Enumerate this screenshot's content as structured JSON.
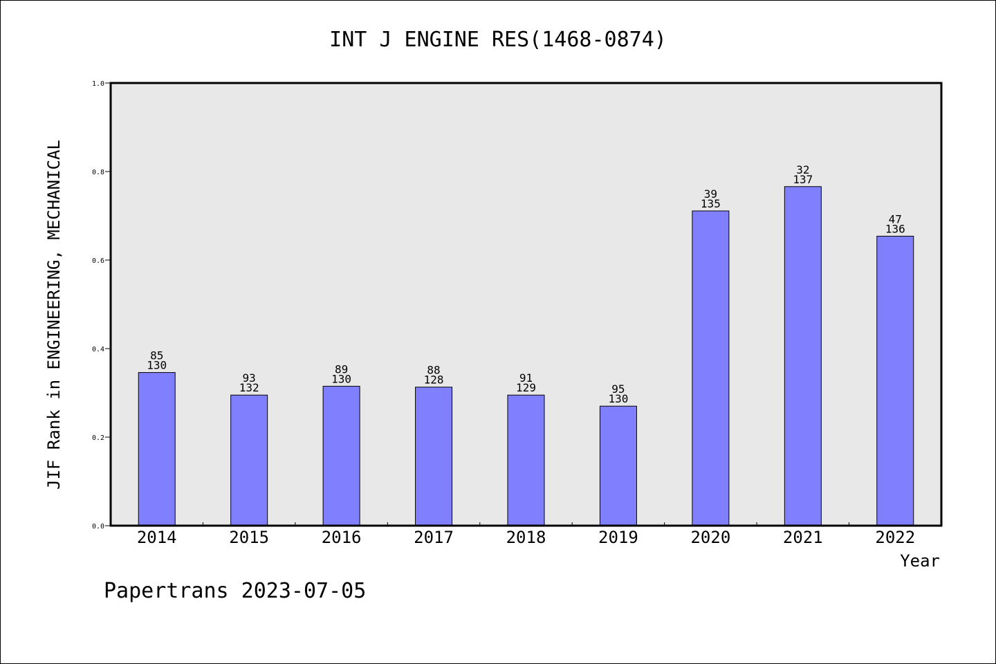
{
  "chart_data": {
    "type": "bar",
    "title": "INT J ENGINE RES(1468-0874)",
    "xlabel": "Year",
    "ylabel": "JIF Rank in ENGINEERING, MECHANICAL",
    "ylim": [
      0.0,
      1.0
    ],
    "yticks": [
      0.0,
      0.2,
      0.4,
      0.6,
      0.8,
      1.0
    ],
    "ytick_labels": [
      "0.0",
      "0.2",
      "0.4",
      "0.6",
      "0.8",
      "1.0"
    ],
    "categories": [
      "2014",
      "2015",
      "2016",
      "2017",
      "2018",
      "2019",
      "2020",
      "2021",
      "2022"
    ],
    "values": [
      0.346,
      0.295,
      0.315,
      0.313,
      0.295,
      0.27,
      0.711,
      0.766,
      0.654
    ],
    "rank_labels": [
      "85",
      "93",
      "89",
      "88",
      "91",
      "95",
      "39",
      "32",
      "47"
    ],
    "total_labels": [
      "130",
      "132",
      "130",
      "128",
      "129",
      "130",
      "135",
      "137",
      "136"
    ],
    "grid": false,
    "bar_color": "#8080ff",
    "plot_background": "#e8e8e8"
  },
  "footer": {
    "credit": "Papertrans 2023-07-05"
  }
}
